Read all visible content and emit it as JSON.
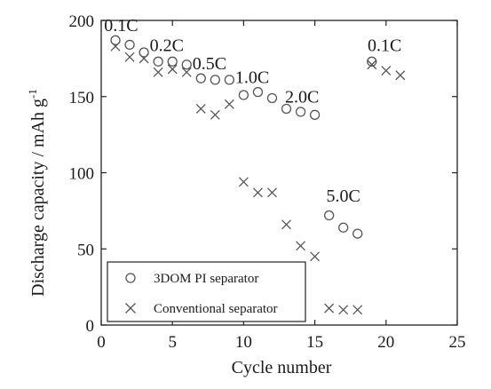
{
  "chart_data": {
    "type": "scatter",
    "title": "",
    "xlabel": "Cycle number",
    "ylabel": "Discharge capacity / mAh g",
    "ylabel_superscript": "-1",
    "xlim": [
      0,
      25
    ],
    "ylim": [
      0,
      200
    ],
    "xticks": [
      0,
      5,
      10,
      15,
      20,
      25
    ],
    "yticks": [
      0,
      50,
      100,
      150,
      200
    ],
    "grid": false,
    "legend_position": "bottom-left",
    "series": [
      {
        "name": "3DOM PI separator",
        "marker": "circle",
        "x": [
          1,
          2,
          3,
          4,
          5,
          6,
          7,
          8,
          9,
          10,
          11,
          12,
          13,
          14,
          15,
          16,
          17,
          18,
          19
        ],
        "y": [
          187,
          184,
          179,
          173,
          173,
          171,
          162,
          161,
          161,
          151,
          153,
          149,
          142,
          140,
          138,
          72,
          64,
          60,
          173
        ]
      },
      {
        "name": "Conventional separator",
        "marker": "cross",
        "x": [
          1,
          2,
          3,
          4,
          5,
          6,
          7,
          8,
          9,
          10,
          11,
          12,
          13,
          14,
          15,
          16,
          17,
          18,
          19,
          20,
          21
        ],
        "y": [
          183,
          176,
          175,
          166,
          168,
          166,
          142,
          138,
          145,
          94,
          87,
          87,
          66,
          52,
          45,
          11,
          10,
          10,
          171,
          167,
          164
        ]
      }
    ],
    "annotations": [
      {
        "text": "0.1C",
        "x": 1.4,
        "y": 193
      },
      {
        "text": "0.2C",
        "x": 4.6,
        "y": 180
      },
      {
        "text": "0.5C",
        "x": 7.6,
        "y": 168
      },
      {
        "text": "1.0C",
        "x": 10.6,
        "y": 159
      },
      {
        "text": "2.0C",
        "x": 14.1,
        "y": 146
      },
      {
        "text": "5.0C",
        "x": 17.0,
        "y": 81
      },
      {
        "text": "0.1C",
        "x": 19.9,
        "y": 180
      }
    ],
    "colors": {
      "marker": "#555555",
      "axis": "#222222",
      "text": "#1a1a1a"
    }
  }
}
